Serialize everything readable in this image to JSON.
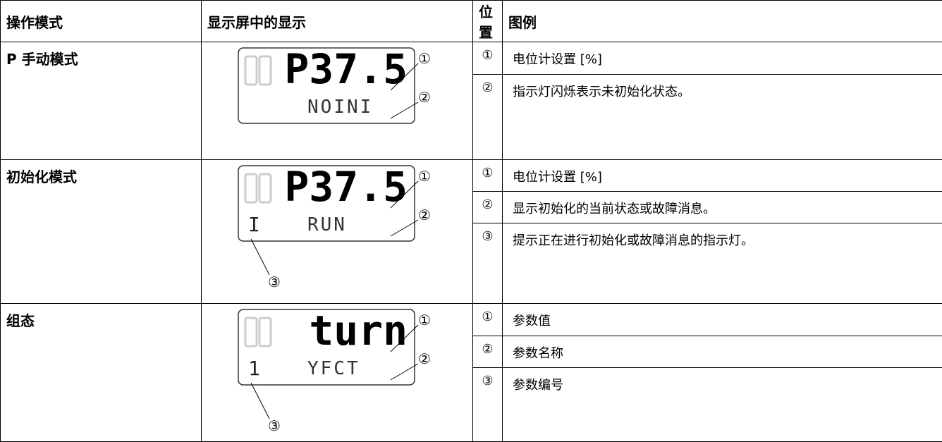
{
  "header": [
    "操作模式",
    "显示屏中的显示",
    "位置",
    "图例"
  ],
  "rows": [
    {
      "mode": "P 手动模式",
      "display": {
        "main": "P37.5",
        "right": "NOINI",
        "callouts": [
          "①",
          "②"
        ]
      },
      "legend": [
        {
          "position": "①",
          "text": "电位计设置 [%]"
        },
        {
          "position": "②",
          "text": "指示灯闪烁表示未初始化状态。"
        }
      ]
    },
    {
      "mode": "初始化模式",
      "display": {
        "main": "P37.5",
        "left": "I",
        "right": "RUN",
        "callouts": [
          "①",
          "②",
          "③"
        ]
      },
      "legend": [
        {
          "position": "①",
          "text": "电位计设置 [%]"
        },
        {
          "position": "②",
          "text": "显示初始化的当前状态或故障消息。"
        },
        {
          "position": "③",
          "text": "提示正在进行初始化或故障消息的指示灯。"
        }
      ]
    },
    {
      "mode": "组态",
      "display": {
        "main": "turn",
        "left": "1",
        "right": "YFCT",
        "callouts": [
          "①",
          "②",
          "③"
        ]
      },
      "legend": [
        {
          "position": "①",
          "text": "参数值"
        },
        {
          "position": "②",
          "text": "参数名称"
        },
        {
          "position": "③",
          "text": "参数编号"
        }
      ]
    }
  ]
}
